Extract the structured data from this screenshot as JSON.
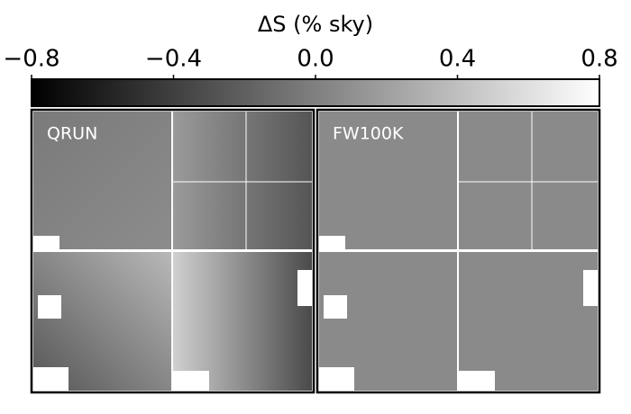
{
  "chart_data": {
    "type": "colorbar-image",
    "title": "ΔS (% sky)",
    "xlim": [
      -0.8,
      0.8
    ],
    "xticks": [
      {
        "value": -0.8,
        "label": "−0.8"
      },
      {
        "value": -0.4,
        "label": "−0.4"
      },
      {
        "value": 0,
        "label": "0.0"
      },
      0.4,
      0.8
    ],
    "cmap": [
      "#000000",
      "#ffffff"
    ],
    "panels": [
      "QRUN",
      "FW100K"
    ]
  }
}
